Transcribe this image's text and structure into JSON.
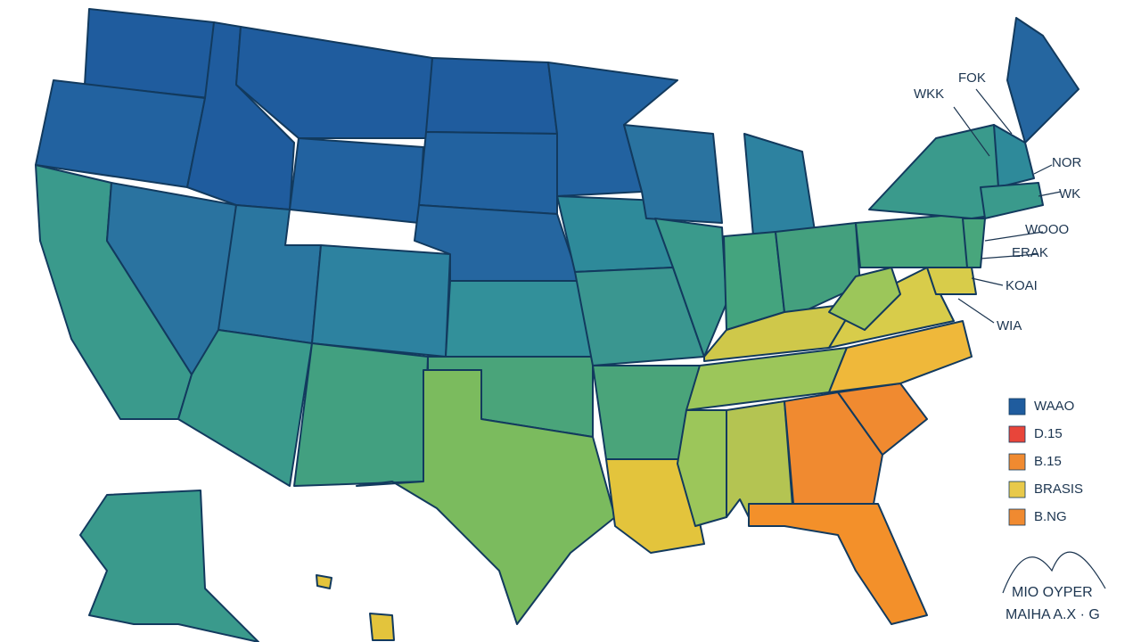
{
  "map": {
    "labels": [
      "FOK",
      "WKK",
      "NOR",
      "WK",
      "WOOO",
      "ERAK",
      "KOAI",
      "WIA"
    ],
    "legend": [
      {
        "label": "WAAO",
        "color": "#1f5c9e"
      },
      {
        "label": "D.15",
        "color": "#e8453a"
      },
      {
        "label": "B.15",
        "color": "#f08a30"
      },
      {
        "label": "BRASIS",
        "color": "#e8c94a"
      },
      {
        "label": "B.NG",
        "color": "#f08a30"
      }
    ],
    "footer": [
      "MIO OYPER",
      "MAIHA A.X · G"
    ]
  }
}
